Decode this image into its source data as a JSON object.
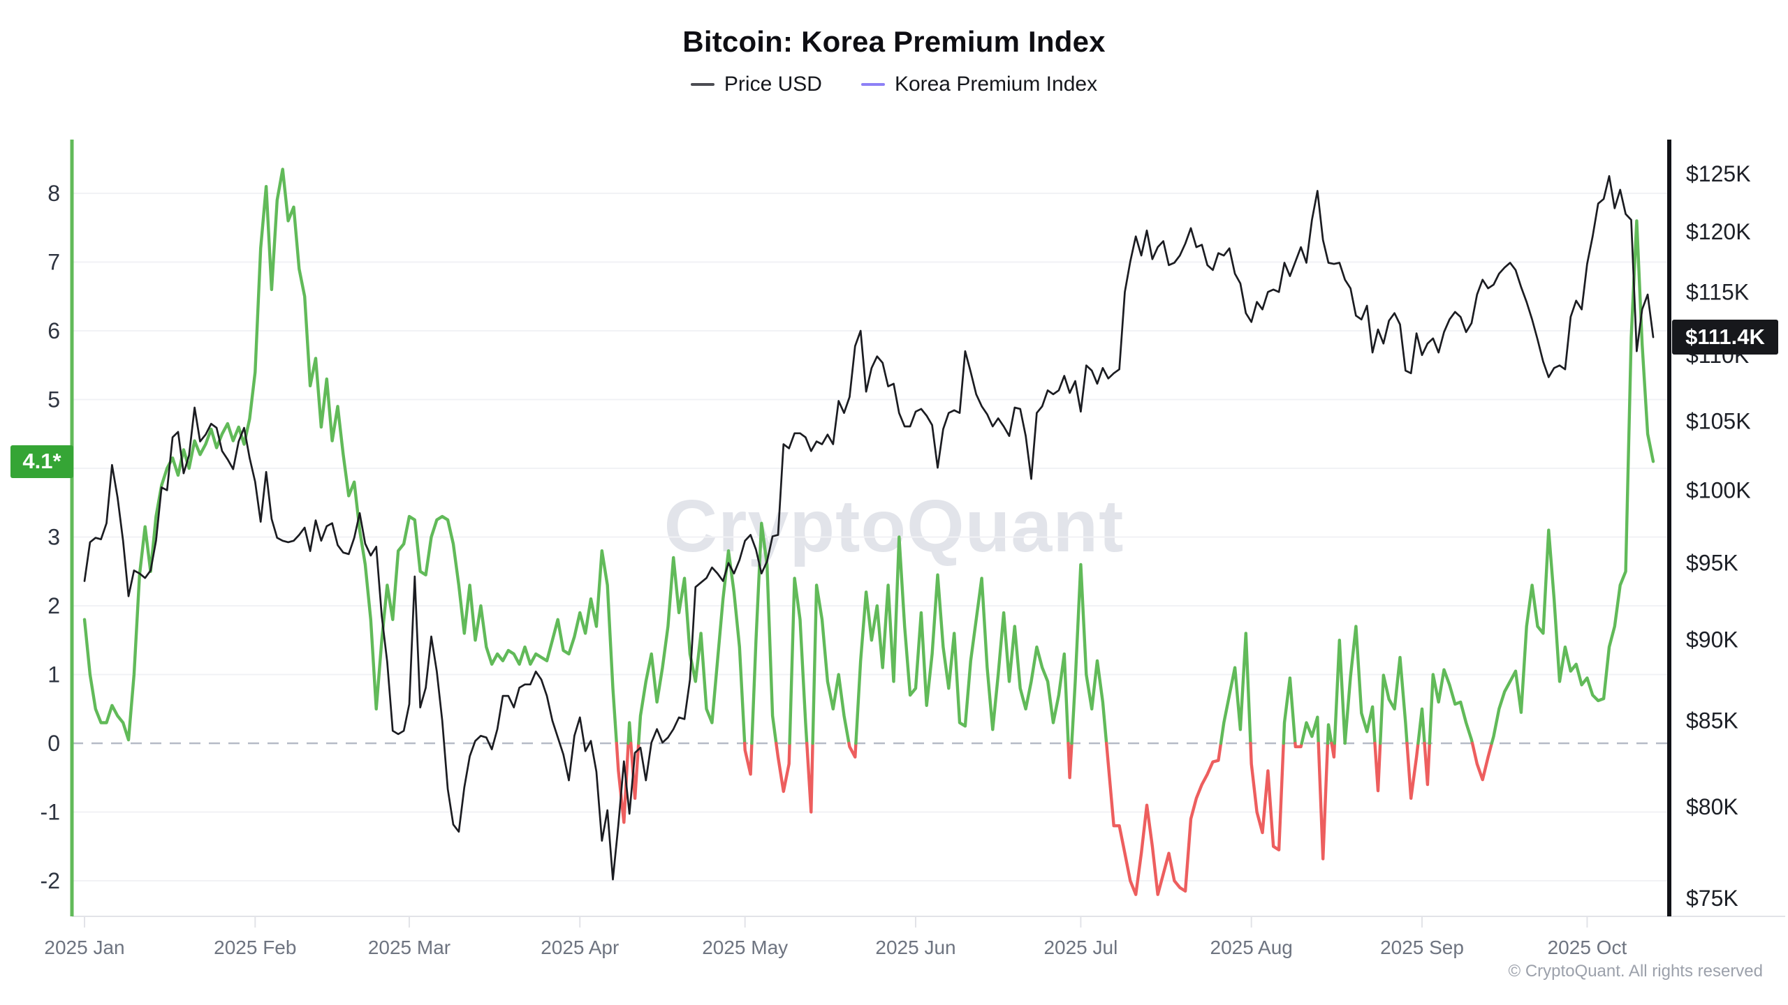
{
  "header": {
    "title": "Bitcoin: Korea Premium Index"
  },
  "legend": [
    {
      "label": "Price USD",
      "color": "#4b4c52"
    },
    {
      "label": "Korea Premium Index",
      "color": "#8d80f6"
    }
  ],
  "watermark": "CryptoQuant",
  "footer": {
    "copyright": "© CryptoQuant. All rights reserved"
  },
  "badges": {
    "premium_last_label": "4.1*",
    "price_last_label": "$111.4K",
    "premium_badge_color": "#35a535",
    "price_badge_color": "#17181c"
  },
  "colors": {
    "price_line": "#1b1c21",
    "premium_positive": "#61ba59",
    "premium_negative": "#ed5e5e",
    "left_axis_line": "#61ba59",
    "right_axis_line": "#111217",
    "grid_line": "#f1f2f5",
    "zero_dash_line": "#b6bac6",
    "x_axis_line": "#e2e3e8",
    "tick_label": "#2e3440",
    "x_label": "#6e7480"
  },
  "chart_data": {
    "type": "line",
    "title": "Bitcoin: Korea Premium Index",
    "start_date": "2025-01-01",
    "x_unit": "day",
    "grid": true,
    "legend_position": "top",
    "month_ticks": [
      {
        "label": "2025 Jan",
        "day": 0
      },
      {
        "label": "2025 Feb",
        "day": 31
      },
      {
        "label": "2025 Mar",
        "day": 59
      },
      {
        "label": "2025 Apr",
        "day": 90
      },
      {
        "label": "2025 May",
        "day": 120
      },
      {
        "label": "2025 Jun",
        "day": 151
      },
      {
        "label": "2025 Jul",
        "day": 181
      },
      {
        "label": "2025 Aug",
        "day": 212
      },
      {
        "label": "2025 Sep",
        "day": 243
      },
      {
        "label": "2025 Oct",
        "day": 273
      }
    ],
    "left_axis": {
      "name": "Korea Premium Index",
      "scale": "linear",
      "ticks": [
        8,
        7,
        6,
        5,
        4,
        3,
        2,
        1,
        0,
        -1,
        -2
      ],
      "range": [
        -2.45,
        8.85
      ],
      "zero_line_dashed": true
    },
    "right_axis": {
      "name": "Price USD",
      "scale": "log",
      "unit": "$K",
      "tick_labels": [
        "$125K",
        "$120K",
        "$115K",
        "$110K",
        "$105K",
        "$100K",
        "$95K",
        "$90K",
        "$85K",
        "$80K",
        "$75K"
      ],
      "tick_values": [
        125,
        120,
        115,
        110,
        105,
        100,
        95,
        90,
        85,
        80,
        75
      ]
    },
    "last_values": {
      "premium_pct": 4.1,
      "price_usd_k": 111.4
    },
    "series": [
      {
        "name": "Price USD",
        "axis": "right",
        "color": "#1b1c21",
        "values": [
          93.8,
          96.4,
          96.7,
          96.6,
          97.7,
          101.8,
          99.5,
          96.5,
          92.8,
          94.5,
          94.3,
          94.0,
          94.5,
          96.5,
          100.2,
          100.0,
          103.8,
          104.2,
          101.2,
          102.5,
          106.0,
          103.5,
          104.0,
          104.8,
          104.5,
          102.8,
          102.2,
          101.5,
          103.5,
          104.5,
          102.3,
          100.6,
          97.8,
          101.3,
          98.0,
          96.7,
          96.5,
          96.4,
          96.5,
          96.9,
          97.4,
          95.8,
          97.9,
          96.5,
          97.5,
          97.7,
          96.2,
          95.7,
          95.6,
          96.7,
          98.4,
          96.3,
          95.5,
          96.1,
          91.5,
          88.6,
          84.4,
          84.2,
          84.4,
          86.0,
          94.1,
          85.8,
          87.0,
          90.2,
          88.0,
          85.0,
          81.0,
          79.0,
          78.6,
          81.1,
          82.9,
          83.8,
          84.1,
          84.0,
          83.3,
          84.5,
          86.5,
          86.5,
          85.8,
          87.0,
          87.2,
          87.2,
          88.0,
          87.5,
          86.5,
          85.0,
          84.0,
          83.0,
          81.5,
          84.1,
          85.2,
          83.2,
          83.8,
          82.0,
          78.1,
          79.8,
          76.0,
          79.0,
          82.6,
          79.6,
          83.1,
          83.4,
          81.5,
          83.7,
          84.5,
          83.7,
          84.0,
          84.5,
          85.2,
          85.1,
          87.5,
          93.4,
          93.7,
          94.0,
          94.7,
          94.3,
          93.8,
          95.0,
          94.3,
          95.2,
          96.5,
          96.9,
          95.9,
          94.3,
          95.1,
          96.8,
          96.9,
          103.3,
          103.0,
          104.1,
          104.1,
          103.8,
          102.8,
          103.5,
          103.3,
          104.0,
          103.3,
          106.5,
          105.6,
          106.8,
          110.7,
          111.9,
          107.2,
          109.0,
          109.9,
          109.4,
          107.6,
          107.8,
          105.6,
          104.6,
          104.6,
          105.7,
          105.9,
          105.4,
          104.7,
          101.6,
          104.4,
          105.6,
          105.8,
          105.6,
          110.3,
          108.7,
          107.0,
          106.1,
          105.5,
          104.6,
          105.2,
          104.6,
          103.9,
          106.0,
          105.9,
          103.9,
          100.8,
          105.6,
          106.1,
          107.3,
          107.0,
          107.3,
          108.4,
          107.1,
          108.0,
          105.7,
          109.2,
          108.8,
          107.8,
          109.0,
          108.2,
          108.6,
          108.9,
          115.0,
          117.5,
          119.6,
          118.0,
          120.1,
          117.7,
          118.7,
          119.2,
          117.2,
          117.4,
          118.0,
          119.0,
          120.3,
          118.7,
          118.9,
          117.2,
          116.8,
          118.2,
          118.0,
          118.6,
          116.5,
          115.7,
          113.3,
          112.6,
          114.2,
          113.6,
          115.0,
          115.2,
          115.0,
          117.4,
          116.3,
          117.5,
          118.7,
          117.4,
          121.0,
          123.5,
          119.3,
          117.4,
          117.3,
          117.4,
          116.0,
          115.3,
          113.1,
          112.8,
          113.9,
          110.2,
          112.0,
          110.9,
          112.7,
          113.3,
          112.4,
          108.8,
          108.6,
          111.7,
          110.0,
          110.9,
          111.3,
          110.2,
          111.8,
          112.8,
          113.4,
          113.0,
          111.8,
          112.5,
          114.8,
          116.0,
          115.3,
          115.6,
          116.5,
          117.0,
          117.4,
          116.8,
          115.4,
          114.2,
          112.8,
          111.2,
          109.5,
          108.3,
          109.0,
          109.2,
          108.9,
          113.0,
          114.3,
          113.6,
          117.3,
          119.6,
          122.4,
          122.8,
          124.8,
          122.0,
          123.6,
          121.5,
          121.0,
          110.3,
          113.6,
          114.8,
          111.4
        ]
      },
      {
        "name": "Korea Premium Index",
        "axis": "left",
        "color_positive": "#61ba59",
        "color_negative": "#ed5e5e",
        "values": [
          1.8,
          1.0,
          0.5,
          0.3,
          0.3,
          0.55,
          0.4,
          0.3,
          0.05,
          1.0,
          2.45,
          3.15,
          2.5,
          3.3,
          3.75,
          4.0,
          4.15,
          3.9,
          4.27,
          4.0,
          4.4,
          4.2,
          4.35,
          4.57,
          4.3,
          4.5,
          4.65,
          4.4,
          4.6,
          4.35,
          4.72,
          5.4,
          7.2,
          8.1,
          6.6,
          7.9,
          8.35,
          7.6,
          7.8,
          6.9,
          6.5,
          5.2,
          5.6,
          4.6,
          5.3,
          4.4,
          4.9,
          4.2,
          3.6,
          3.8,
          3.1,
          2.6,
          1.8,
          0.5,
          1.5,
          2.3,
          1.8,
          2.8,
          2.9,
          3.3,
          3.25,
          2.5,
          2.45,
          3.0,
          3.25,
          3.3,
          3.25,
          2.9,
          2.3,
          1.6,
          2.3,
          1.5,
          2.0,
          1.4,
          1.15,
          1.3,
          1.2,
          1.35,
          1.3,
          1.15,
          1.4,
          1.15,
          1.3,
          1.25,
          1.2,
          1.5,
          1.8,
          1.35,
          1.3,
          1.55,
          1.9,
          1.6,
          2.1,
          1.7,
          2.8,
          2.3,
          0.8,
          -0.4,
          -1.15,
          0.3,
          -0.8,
          0.4,
          0.9,
          1.3,
          0.6,
          1.1,
          1.7,
          2.7,
          1.9,
          2.4,
          1.3,
          0.9,
          1.6,
          0.5,
          0.3,
          1.2,
          2.1,
          2.8,
          2.2,
          1.4,
          -0.1,
          -0.45,
          1.5,
          3.2,
          2.6,
          0.4,
          -0.2,
          -0.7,
          -0.3,
          2.4,
          1.8,
          0.3,
          -1.0,
          2.3,
          1.8,
          0.9,
          0.5,
          1.0,
          0.4,
          -0.05,
          -0.2,
          1.2,
          2.2,
          1.5,
          2.0,
          1.1,
          2.3,
          0.9,
          3.0,
          1.7,
          0.7,
          0.8,
          1.9,
          0.55,
          1.3,
          2.45,
          1.4,
          0.8,
          1.6,
          0.3,
          0.25,
          1.2,
          1.8,
          2.4,
          1.1,
          0.2,
          1.0,
          1.9,
          0.9,
          1.7,
          0.8,
          0.5,
          0.9,
          1.4,
          1.1,
          0.9,
          0.3,
          0.7,
          1.3,
          -0.5,
          0.9,
          2.6,
          1.0,
          0.5,
          1.2,
          0.6,
          -0.3,
          -1.2,
          -1.2,
          -1.6,
          -2.0,
          -2.2,
          -1.6,
          -0.9,
          -1.5,
          -2.2,
          -1.9,
          -1.6,
          -2.0,
          -2.1,
          -2.15,
          -1.1,
          -0.8,
          -0.6,
          -0.45,
          -0.27,
          -0.25,
          0.3,
          0.7,
          1.1,
          0.2,
          1.6,
          -0.3,
          -1.0,
          -1.3,
          -0.4,
          -1.5,
          -1.55,
          0.3,
          0.95,
          -0.05,
          -0.05,
          0.3,
          0.1,
          0.38,
          -1.68,
          0.27,
          -0.2,
          1.5,
          0.0,
          0.97,
          1.7,
          0.44,
          0.17,
          0.53,
          -0.69,
          0.99,
          0.64,
          0.5,
          1.25,
          0.3,
          -0.8,
          -0.2,
          0.5,
          -0.6,
          1.0,
          0.6,
          1.07,
          0.85,
          0.57,
          0.6,
          0.3,
          0.05,
          -0.3,
          -0.53,
          -0.2,
          0.1,
          0.5,
          0.75,
          0.9,
          1.05,
          0.45,
          1.7,
          2.3,
          1.7,
          1.6,
          3.1,
          2.1,
          0.9,
          1.4,
          1.05,
          1.15,
          0.85,
          0.95,
          0.7,
          0.62,
          0.65,
          1.4,
          1.7,
          2.3,
          2.5,
          5.9,
          7.6,
          5.8,
          4.5,
          4.1
        ]
      }
    ]
  }
}
